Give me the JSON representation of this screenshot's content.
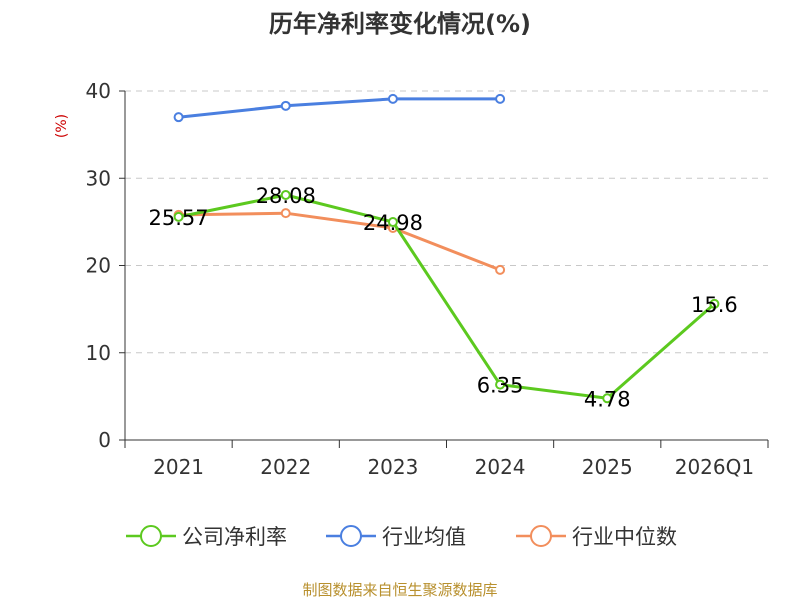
{
  "chart_data": {
    "type": "line",
    "title": "历年净利率变化情况(%)",
    "ylabel": "(%)",
    "xlabel": "",
    "categories": [
      "2021",
      "2022",
      "2023",
      "2024",
      "2025",
      "2026Q1"
    ],
    "yticks": [
      0,
      10,
      20,
      30,
      40
    ],
    "ylim": [
      0,
      40
    ],
    "grid": "horizontal dashed",
    "legend_position": "bottom",
    "series": [
      {
        "name": "公司净利率",
        "color": "#5cc91f",
        "values": [
          25.57,
          28.08,
          24.98,
          6.35,
          4.78,
          15.6
        ],
        "labels": [
          "25.57",
          "28.08",
          "24.98",
          "6.35",
          "4.78",
          "15.6"
        ]
      },
      {
        "name": "行业均值",
        "color": "#4a7fe0",
        "values": [
          37.0,
          38.3,
          39.1,
          39.1,
          null,
          null
        ]
      },
      {
        "name": "行业中位数",
        "color": "#f28e5c",
        "values": [
          25.8,
          26.0,
          24.3,
          19.5,
          null,
          null
        ]
      }
    ]
  },
  "footer": {
    "source": "制图数据来自恒生聚源数据库"
  }
}
